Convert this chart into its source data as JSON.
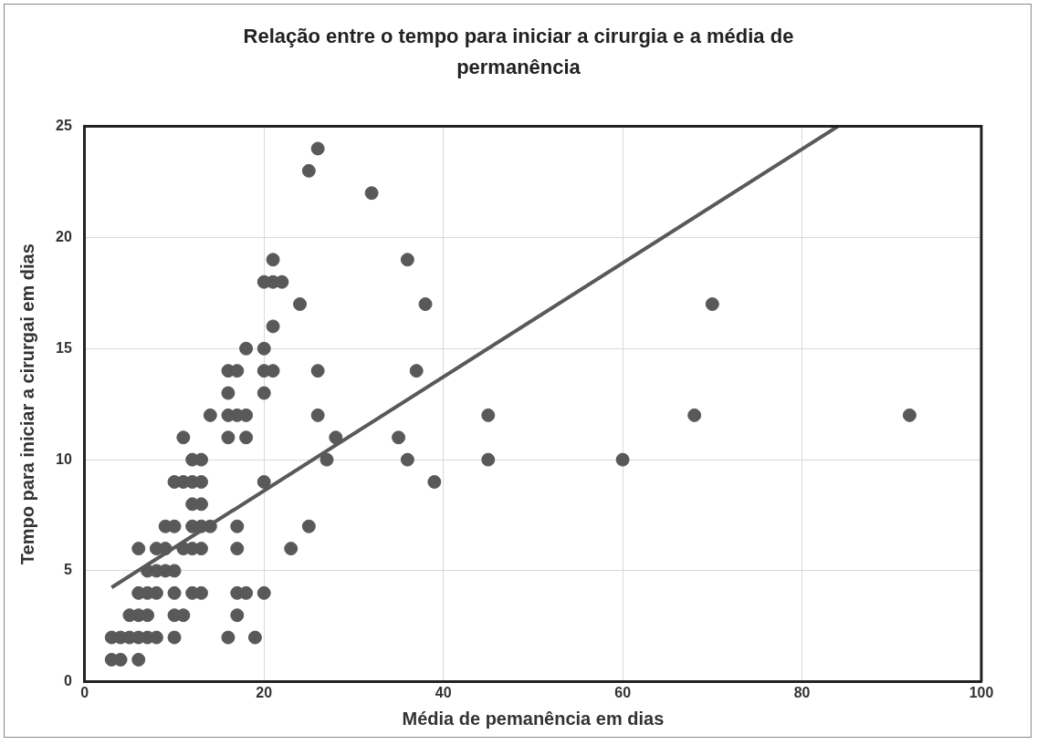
{
  "chart_data": {
    "type": "scatter",
    "title": "Relação entre o tempo para iniciar a cirurgia e a média de permanência",
    "xlabel": "Média de pemanência em dias",
    "ylabel": "Tempo para iniciar a cirurgai em dias",
    "xlim": [
      0,
      100
    ],
    "xticks": [
      0,
      20,
      40,
      60,
      80,
      100
    ],
    "ylim": [
      0,
      25
    ],
    "yticks": [
      0,
      5,
      10,
      15,
      20,
      25
    ],
    "grid": true,
    "legend": false,
    "marker": "circle",
    "series": [
      {
        "color": "#595959",
        "x": [
          3,
          4,
          6,
          3,
          4,
          5,
          6,
          7,
          8,
          10,
          16,
          19,
          5,
          6,
          7,
          10,
          11,
          17,
          6,
          7,
          8,
          10,
          12,
          13,
          17,
          18,
          20,
          7,
          8,
          9,
          10,
          6,
          8,
          9,
          11,
          12,
          13,
          17,
          23,
          9,
          10,
          12,
          13,
          14,
          17,
          25,
          12,
          13,
          10,
          11,
          12,
          13,
          20,
          39,
          12,
          13,
          27,
          36,
          45,
          60,
          11,
          16,
          18,
          28,
          35,
          14,
          16,
          17,
          18,
          26,
          45,
          68,
          92,
          16,
          20,
          16,
          17,
          20,
          21,
          26,
          37,
          18,
          20,
          21,
          24,
          38,
          70,
          20,
          21,
          22,
          21,
          36,
          32,
          25,
          26
        ],
        "values": [
          1,
          1,
          1,
          2,
          2,
          2,
          2,
          2,
          2,
          2,
          2,
          2,
          3,
          3,
          3,
          3,
          3,
          3,
          4,
          4,
          4,
          4,
          4,
          4,
          4,
          4,
          4,
          5,
          5,
          5,
          5,
          6,
          6,
          6,
          6,
          6,
          6,
          6,
          6,
          7,
          7,
          7,
          7,
          7,
          7,
          7,
          8,
          8,
          9,
          9,
          9,
          9,
          9,
          9,
          10,
          10,
          10,
          10,
          10,
          10,
          11,
          11,
          11,
          11,
          11,
          12,
          12,
          12,
          12,
          12,
          12,
          12,
          12,
          13,
          13,
          14,
          14,
          14,
          14,
          14,
          14,
          15,
          15,
          16,
          17,
          17,
          17,
          18,
          18,
          18,
          19,
          19,
          22,
          23,
          24
        ]
      },
      {
        "type": "line",
        "color": "#595959",
        "x": [
          3,
          84
        ],
        "values": [
          4.25,
          25
        ],
        "marker": "none",
        "line_style": "solid"
      }
    ]
  }
}
